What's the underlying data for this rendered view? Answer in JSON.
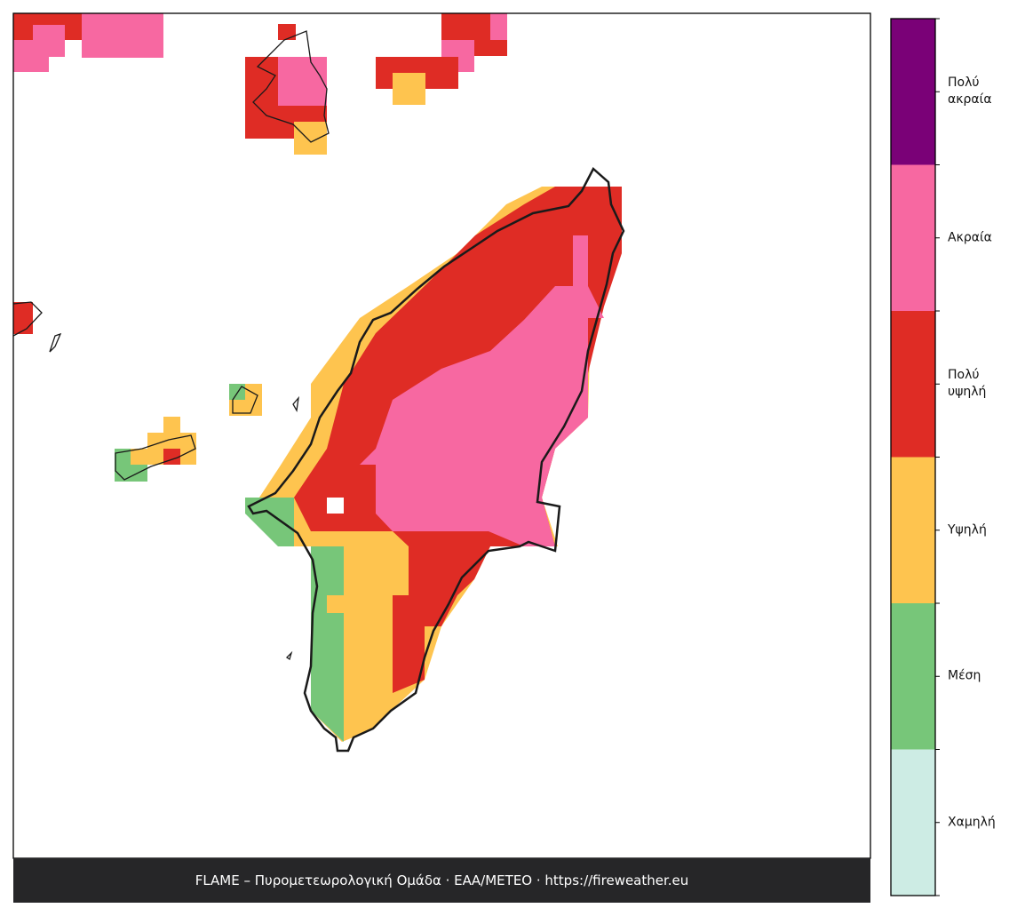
{
  "legend": {
    "classes": [
      {
        "label": "Χαμηλή",
        "color": "#cdece4"
      },
      {
        "label": "Μέση",
        "color": "#77c679"
      },
      {
        "label": "Υψηλή",
        "color": "#fec44f"
      },
      {
        "label": "Πολύ\nυψηλή",
        "color": "#df2c25"
      },
      {
        "label": "Ακραία",
        "color": "#f768a1"
      },
      {
        "label": "Πολύ\nακραία",
        "color": "#7a0177"
      }
    ]
  },
  "footer": {
    "text": "FLAME – Πυρομετεωρολογική Ομάδα · ΕΑΑ/METEO · https://fireweather.eu"
  }
}
